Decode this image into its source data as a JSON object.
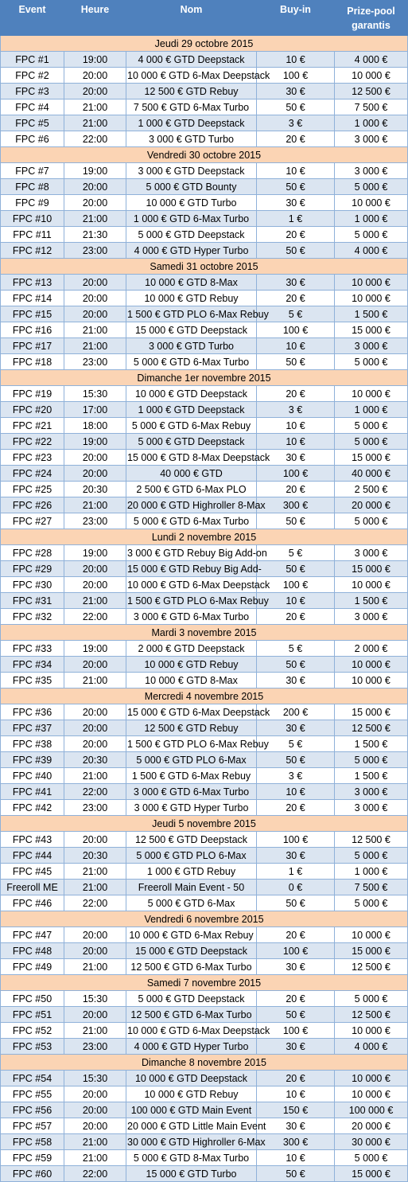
{
  "headers": [
    "Event",
    "Heure",
    "Nom",
    "Buy-in",
    "Prize-pool garantis"
  ],
  "days": [
    {
      "label": "Jeudi 29 octobre 2015",
      "events": [
        [
          "FPC #1",
          "19:00",
          "4 000 € GTD Deepstack",
          "10 €",
          "4 000 €"
        ],
        [
          "FPC #2",
          "20:00",
          "10 000 € GTD 6-Max Deepstack",
          "100 €",
          "10 000 €"
        ],
        [
          "FPC #3",
          "20:00",
          "12 500 € GTD Rebuy",
          "30 €",
          "12 500 €"
        ],
        [
          "FPC #4",
          "21:00",
          "7 500 € GTD 6-Max Turbo",
          "50 €",
          "7 500 €"
        ],
        [
          "FPC #5",
          "21:00",
          "1 000 € GTD Deepstack",
          "3 €",
          "1 000 €"
        ],
        [
          "FPC #6",
          "22:00",
          "3 000 € GTD Turbo",
          "20 €",
          "3 000 €"
        ]
      ]
    },
    {
      "label": "Vendredi 30 octobre 2015",
      "events": [
        [
          "FPC #7",
          "19:00",
          "3 000 € GTD Deepstack",
          "10 €",
          "3 000 €"
        ],
        [
          "FPC #8",
          "20:00",
          "5 000 € GTD Bounty",
          "50 €",
          "5 000 €"
        ],
        [
          "FPC #9",
          "20:00",
          "10 000 € GTD Turbo",
          "30 €",
          "10 000 €"
        ],
        [
          "FPC #10",
          "21:00",
          "1 000 € GTD 6-Max Turbo",
          "1 €",
          "1 000 €"
        ],
        [
          "FPC #11",
          "21:30",
          "5 000 € GTD Deepstack",
          "20 €",
          "5 000 €"
        ],
        [
          "FPC #12",
          "23:00",
          "4 000 € GTD Hyper Turbo",
          "50 €",
          "4 000 €"
        ]
      ]
    },
    {
      "label": "Samedi 31 octobre 2015",
      "events": [
        [
          "FPC #13",
          "20:00",
          "10 000 € GTD 8-Max",
          "30 €",
          "10 000 €"
        ],
        [
          "FPC #14",
          "20:00",
          "10 000 € GTD Rebuy",
          "20 €",
          "10 000 €"
        ],
        [
          "FPC #15",
          "20:00",
          "1 500 € GTD PLO 6-Max Rebuy",
          "5 €",
          "1 500 €"
        ],
        [
          "FPC #16",
          "21:00",
          "15 000 € GTD Deepstack",
          "100 €",
          "15 000 €"
        ],
        [
          "FPC #17",
          "21:00",
          "3 000 € GTD Turbo",
          "10 €",
          "3 000 €"
        ],
        [
          "FPC #18",
          "23:00",
          "5 000 € GTD 6-Max Turbo",
          "50 €",
          "5 000 €"
        ]
      ]
    },
    {
      "label": "Dimanche 1er novembre 2015",
      "events": [
        [
          "FPC #19",
          "15:30",
          "10 000 € GTD Deepstack",
          "20 €",
          "10 000 €"
        ],
        [
          "FPC #20",
          "17:00",
          "1 000 € GTD Deepstack",
          "3 €",
          "1 000 €"
        ],
        [
          "FPC #21",
          "18:00",
          "5 000 € GTD 6-Max Rebuy",
          "10 €",
          "5 000 €"
        ],
        [
          "FPC #22",
          "19:00",
          "5 000 € GTD Deepstack",
          "10 €",
          "5 000 €"
        ],
        [
          "FPC #23",
          "20:00",
          "15 000 € GTD 8-Max Deepstack",
          "30 €",
          "15 000 €"
        ],
        [
          "FPC #24",
          "20:00",
          "40 000 € GTD",
          "100 €",
          "40 000 €"
        ],
        [
          "FPC #25",
          "20:30",
          "2 500 € GTD 6-Max PLO",
          "20 €",
          "2 500 €"
        ],
        [
          "FPC #26",
          "21:00",
          "20 000 € GTD Highroller 8-Max",
          "300 €",
          "20 000 €"
        ],
        [
          "FPC #27",
          "23:00",
          "5 000 € GTD 6-Max Turbo",
          "50 €",
          "5 000 €"
        ]
      ]
    },
    {
      "label": "Lundi 2 novembre 2015",
      "events": [
        [
          "FPC #28",
          "19:00",
          "3 000 € GTD Rebuy Big Add-on",
          "5 €",
          "3 000 €"
        ],
        [
          "FPC #29",
          "20:00",
          "15 000 € GTD Rebuy Big Add-",
          "50 €",
          "15 000 €"
        ],
        [
          "FPC #30",
          "20:00",
          "10 000 € GTD 6-Max Deepstack",
          "100 €",
          "10 000 €"
        ],
        [
          "FPC #31",
          "21:00",
          "1 500 € GTD PLO 6-Max Rebuy",
          "10 €",
          "1 500 €"
        ],
        [
          "FPC #32",
          "22:00",
          "3 000 € GTD 6-Max Turbo",
          "20 €",
          "3 000 €"
        ]
      ]
    },
    {
      "label": "Mardi 3 novembre 2015",
      "events": [
        [
          "FPC #33",
          "19:00",
          "2 000 € GTD Deepstack",
          "5 €",
          "2 000 €"
        ],
        [
          "FPC #34",
          "20:00",
          "10 000 € GTD Rebuy",
          "50 €",
          "10 000 €"
        ],
        [
          "FPC #35",
          "21:00",
          "10 000 € GTD 8-Max",
          "30 €",
          "10 000 €"
        ]
      ]
    },
    {
      "label": "Mercredi 4 novembre 2015",
      "events": [
        [
          "FPC #36",
          "20:00",
          "15 000 € GTD 6-Max Deepstack",
          "200 €",
          "15 000 €"
        ],
        [
          "FPC #37",
          "20:00",
          "12 500 € GTD Rebuy",
          "30 €",
          "12 500 €"
        ],
        [
          "FPC #38",
          "20:00",
          "1 500 € GTD PLO 6-Max Rebuy",
          "5 €",
          "1 500 €"
        ],
        [
          "FPC #39",
          "20:30",
          "5 000 € GTD PLO 6-Max",
          "50 €",
          "5 000 €"
        ],
        [
          "FPC #40",
          "21:00",
          "1 500 € GTD 6-Max Rebuy",
          "3 €",
          "1 500 €"
        ],
        [
          "FPC #41",
          "22:00",
          "3 000 € GTD 6-Max Turbo",
          "10 €",
          "3 000 €"
        ],
        [
          "FPC #42",
          "23:00",
          "3 000 € GTD Hyper Turbo",
          "20 €",
          "3 000 €"
        ]
      ]
    },
    {
      "label": "Jeudi 5 novembre 2015",
      "events": [
        [
          "FPC #43",
          "20:00",
          "12 500 € GTD Deepstack",
          "100 €",
          "12 500 €"
        ],
        [
          "FPC #44",
          "20:30",
          "5 000 € GTD PLO 6-Max",
          "30 €",
          "5 000 €"
        ],
        [
          "FPC #45",
          "21:00",
          "1 000 € GTD Rebuy",
          "1 €",
          "1 000 €"
        ],
        [
          "Freeroll ME",
          "21:00",
          "Freeroll Main Event - 50",
          "0 €",
          "7 500 €"
        ],
        [
          "FPC #46",
          "22:00",
          "5 000 € GTD 6-Max",
          "50 €",
          "5 000 €"
        ]
      ]
    },
    {
      "label": "Vendredi 6 novembre 2015",
      "events": [
        [
          "FPC #47",
          "20:00",
          "10 000 € GTD 6-Max Rebuy",
          "20 €",
          "10 000 €"
        ],
        [
          "FPC #48",
          "20:00",
          "15 000 € GTD Deepstack",
          "100 €",
          "15 000 €"
        ],
        [
          "FPC #49",
          "21:00",
          "12 500 € GTD 6-Max Turbo",
          "30 €",
          "12 500 €"
        ]
      ]
    },
    {
      "label": "Samedi 7 novembre 2015",
      "events": [
        [
          "FPC #50",
          "15:30",
          "5 000 € GTD Deepstack",
          "20 €",
          "5 000 €"
        ],
        [
          "FPC #51",
          "20:00",
          "12 500 € GTD 6-Max Turbo",
          "50 €",
          "12 500 €"
        ],
        [
          "FPC #52",
          "21:00",
          "10 000 € GTD 6-Max Deepstack",
          "100 €",
          "10 000 €"
        ],
        [
          "FPC #53",
          "23:00",
          "4 000 € GTD Hyper Turbo",
          "30 €",
          "4 000 €"
        ]
      ]
    },
    {
      "label": "Dimanche 8 novembre 2015",
      "events": [
        [
          "FPC #54",
          "15:30",
          "10 000 € GTD Deepstack",
          "20 €",
          "10 000 €"
        ],
        [
          "FPC #55",
          "20:00",
          "10 000 € GTD Rebuy",
          "10 €",
          "10 000 €"
        ],
        [
          "FPC #56",
          "20:00",
          "100 000 € GTD Main Event",
          "150 €",
          "100 000 €"
        ],
        [
          "FPC #57",
          "20:00",
          "20 000 € GTD Little Main Event",
          "30 €",
          "20 000 €"
        ],
        [
          "FPC #58",
          "21:00",
          "30 000 € GTD Highroller 6-Max",
          "300 €",
          "30 000 €"
        ],
        [
          "FPC #59",
          "21:00",
          "5 000 € GTD 8-Max Turbo",
          "10 €",
          "5 000 €"
        ],
        [
          "FPC #60",
          "22:00",
          "15 000 € GTD Turbo",
          "50 €",
          "15 000 €"
        ]
      ]
    }
  ]
}
